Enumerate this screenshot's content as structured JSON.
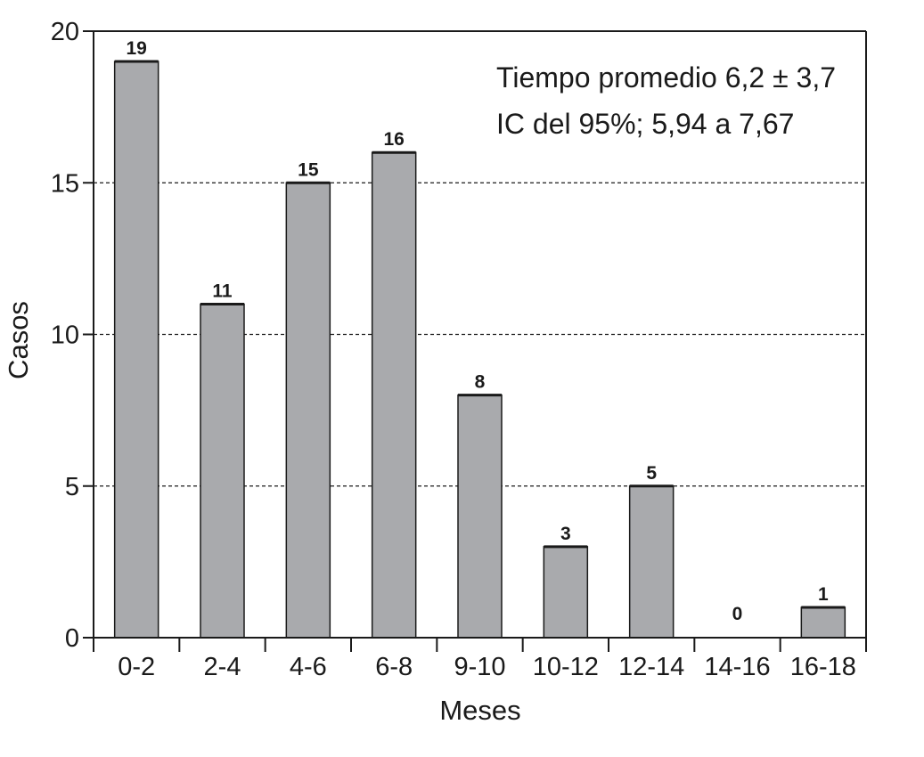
{
  "chart_data": {
    "type": "bar",
    "categories": [
      "0-2",
      "2-4",
      "4-6",
      "6-8",
      "9-10",
      "10-12",
      "12-14",
      "14-16",
      "16-18"
    ],
    "values": [
      19,
      11,
      15,
      16,
      8,
      3,
      5,
      0,
      1
    ],
    "data_labels": [
      "19",
      "11",
      "15",
      "16",
      "8",
      "3",
      "5",
      "0",
      "1"
    ],
    "title": "",
    "xlabel": "Meses",
    "ylabel": "Casos",
    "ylim": [
      0,
      20
    ],
    "yticks": [
      0,
      5,
      10,
      15,
      20
    ],
    "grid": "horizontal dashed at 5, 10, 15",
    "annotations": [
      "Tiempo promedio 6,2 ± 3,7",
      "IC del 95%; 5,94 a 7,67"
    ],
    "colors": {
      "bar_fill": "#a9aaad",
      "bar_stroke": "#1a1a1a",
      "axis": "#1a1a1a"
    }
  }
}
